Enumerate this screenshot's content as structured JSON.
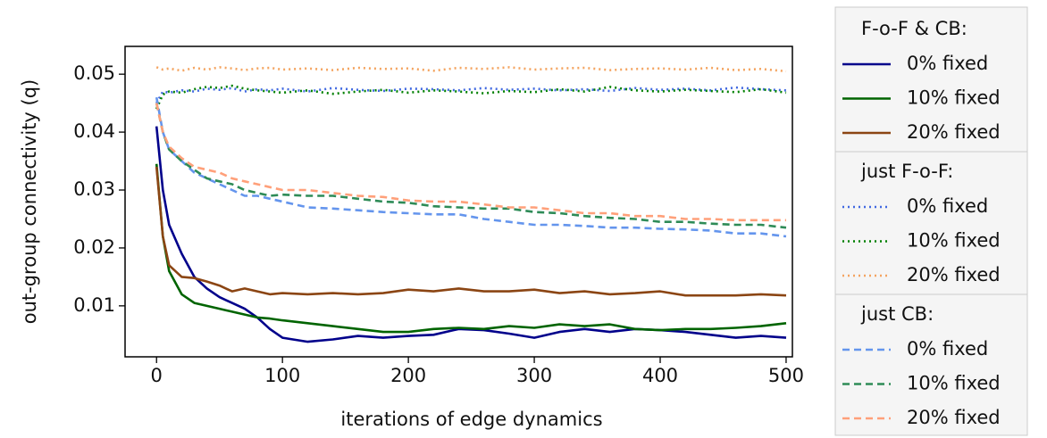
{
  "chart_data": {
    "type": "line",
    "x_label": "iterations of edge dynamics",
    "y_label": "out-group connectivity (q)",
    "x": [
      0,
      5,
      10,
      20,
      30,
      40,
      50,
      60,
      70,
      80,
      90,
      100,
      120,
      140,
      160,
      180,
      200,
      220,
      240,
      260,
      280,
      300,
      320,
      340,
      360,
      380,
      400,
      420,
      440,
      460,
      480,
      500
    ],
    "xlim": [
      -25,
      505
    ],
    "xticks": [
      0,
      100,
      200,
      300,
      400,
      500
    ],
    "ylim": [
      0.0012,
      0.0548
    ],
    "yticks": [
      0.01,
      0.02,
      0.03,
      0.04,
      0.05
    ],
    "grid": false,
    "legend": "outside right",
    "series_groups": [
      {
        "title": "F-o-F & CB:",
        "series": [
          {
            "name": "0% fixed",
            "color": "#00008b",
            "dash": "solid",
            "values": [
              0.041,
              0.03,
              0.024,
              0.019,
              0.015,
              0.013,
              0.0115,
              0.0105,
              0.0095,
              0.008,
              0.006,
              0.0045,
              0.0038,
              0.0042,
              0.0048,
              0.0045,
              0.0048,
              0.005,
              0.006,
              0.0058,
              0.0052,
              0.0045,
              0.0055,
              0.006,
              0.0055,
              0.006,
              0.0058,
              0.0055,
              0.005,
              0.0045,
              0.0048,
              0.0045
            ]
          },
          {
            "name": "10% fixed",
            "color": "#006400",
            "dash": "solid",
            "values": [
              0.0345,
              0.022,
              0.016,
              0.012,
              0.0105,
              0.01,
              0.0095,
              0.009,
              0.0085,
              0.008,
              0.0078,
              0.0075,
              0.007,
              0.0065,
              0.006,
              0.0055,
              0.0055,
              0.006,
              0.0062,
              0.006,
              0.0065,
              0.0062,
              0.0068,
              0.0065,
              0.0068,
              0.006,
              0.0058,
              0.006,
              0.006,
              0.0062,
              0.0065,
              0.007
            ]
          },
          {
            "name": "20% fixed",
            "color": "#8b4513",
            "dash": "solid",
            "values": [
              0.034,
              0.022,
              0.017,
              0.015,
              0.0148,
              0.0142,
              0.0135,
              0.0125,
              0.013,
              0.0125,
              0.012,
              0.0122,
              0.012,
              0.0122,
              0.012,
              0.0122,
              0.0128,
              0.0125,
              0.013,
              0.0125,
              0.0125,
              0.0128,
              0.0122,
              0.0125,
              0.012,
              0.0122,
              0.0125,
              0.0118,
              0.0118,
              0.0118,
              0.012,
              0.0118
            ]
          }
        ]
      },
      {
        "title": "just F-o-F:",
        "series": [
          {
            "name": "0% fixed",
            "color": "#4169e1",
            "dash": "dotted",
            "values": [
              0.045,
              0.047,
              0.0468,
              0.0472,
              0.047,
              0.0475,
              0.0473,
              0.0476,
              0.047,
              0.0474,
              0.0472,
              0.0475,
              0.047,
              0.0476,
              0.0473,
              0.0471,
              0.0475,
              0.0474,
              0.0472,
              0.0476,
              0.0473,
              0.0475,
              0.0472,
              0.0474,
              0.0471,
              0.0476,
              0.0473,
              0.0475,
              0.0472,
              0.0477,
              0.0474,
              0.0472
            ]
          },
          {
            "name": "10% fixed",
            "color": "#008000",
            "dash": "dotted",
            "values": [
              0.044,
              0.0465,
              0.047,
              0.0468,
              0.0474,
              0.0478,
              0.0476,
              0.048,
              0.0475,
              0.0472,
              0.047,
              0.0468,
              0.0472,
              0.0466,
              0.047,
              0.0473,
              0.0468,
              0.0472,
              0.047,
              0.0467,
              0.0471,
              0.0469,
              0.0474,
              0.047,
              0.0478,
              0.0472,
              0.047,
              0.0473,
              0.0471,
              0.0469,
              0.0474,
              0.0468
            ]
          },
          {
            "name": "20% fixed",
            "color": "#f4a460",
            "dash": "dotted",
            "values": [
              0.0512,
              0.0508,
              0.051,
              0.0506,
              0.0511,
              0.0508,
              0.0512,
              0.051,
              0.0507,
              0.051,
              0.0511,
              0.0508,
              0.051,
              0.0507,
              0.0511,
              0.0509,
              0.051,
              0.0506,
              0.0511,
              0.0509,
              0.0512,
              0.0508,
              0.051,
              0.0511,
              0.0507,
              0.0509,
              0.051,
              0.0508,
              0.0511,
              0.0507,
              0.0509,
              0.0505
            ]
          }
        ]
      },
      {
        "title": "just CB:",
        "series": [
          {
            "name": "0% fixed",
            "color": "#6495ed",
            "dash": "dashed",
            "values": [
              0.046,
              0.04,
              0.037,
              0.035,
              0.033,
              0.032,
              0.031,
              0.03,
              0.029,
              0.029,
              0.0285,
              0.028,
              0.027,
              0.0268,
              0.0265,
              0.0262,
              0.026,
              0.0258,
              0.0258,
              0.025,
              0.0245,
              0.024,
              0.024,
              0.0238,
              0.0235,
              0.0235,
              0.0233,
              0.0232,
              0.023,
              0.0225,
              0.0225,
              0.022
            ]
          },
          {
            "name": "10% fixed",
            "color": "#2e8b57",
            "dash": "dashed",
            "values": [
              0.045,
              0.04,
              0.037,
              0.035,
              0.0335,
              0.032,
              0.0315,
              0.031,
              0.03,
              0.0295,
              0.029,
              0.0292,
              0.029,
              0.029,
              0.0285,
              0.028,
              0.0278,
              0.0272,
              0.027,
              0.0268,
              0.0268,
              0.0262,
              0.026,
              0.0255,
              0.0252,
              0.025,
              0.0245,
              0.0245,
              0.0242,
              0.024,
              0.024,
              0.0235
            ]
          },
          {
            "name": "20% fixed",
            "color": "#ffa07a",
            "dash": "dashed",
            "values": [
              0.045,
              0.04,
              0.0375,
              0.0355,
              0.034,
              0.0335,
              0.033,
              0.032,
              0.0315,
              0.031,
              0.0305,
              0.03,
              0.03,
              0.0295,
              0.029,
              0.0288,
              0.0282,
              0.028,
              0.028,
              0.0275,
              0.027,
              0.027,
              0.0265,
              0.026,
              0.026,
              0.0255,
              0.0255,
              0.025,
              0.025,
              0.0248,
              0.0248,
              0.0248
            ]
          }
        ]
      }
    ]
  }
}
